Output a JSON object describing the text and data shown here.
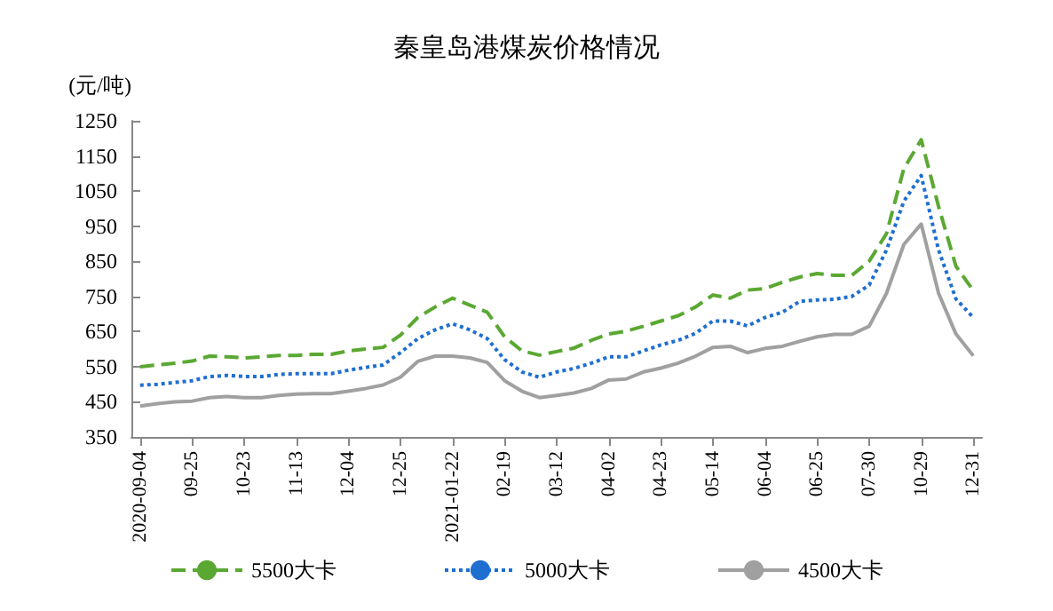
{
  "chart_data": {
    "type": "line",
    "title": "秦皇岛港煤炭价格情况",
    "ylabel": "(元/吨)",
    "categories": [
      "2020-09-04",
      null,
      null,
      "09-25",
      null,
      null,
      "10-23",
      null,
      null,
      "11-13",
      null,
      null,
      "12-04",
      null,
      null,
      "12-25",
      null,
      null,
      "2021-01-22",
      null,
      null,
      "02-19",
      null,
      null,
      "03-12",
      null,
      null,
      "04-02",
      null,
      null,
      "04-23",
      null,
      null,
      "05-14",
      null,
      null,
      "06-04",
      null,
      null,
      "06-25",
      null,
      null,
      "07-30",
      null,
      null,
      "10-29",
      null,
      null,
      "12-31"
    ],
    "series": [
      {
        "name": "5500大卡",
        "color": "#5aa832",
        "line_style": "dashed",
        "values": [
          550,
          555,
          560,
          566,
          580,
          578,
          575,
          578,
          582,
          582,
          585,
          585,
          595,
          600,
          605,
          640,
          690,
          720,
          745,
          725,
          705,
          635,
          595,
          583,
          593,
          603,
          625,
          643,
          651,
          665,
          680,
          695,
          720,
          754,
          745,
          768,
          772,
          790,
          805,
          815,
          810,
          810,
          850,
          929,
          1114,
          1196,
          1006,
          836,
          767
        ]
      },
      {
        "name": "5000大卡",
        "color": "#1f6fd0",
        "line_style": "dotted",
        "values": [
          497,
          500,
          505,
          510,
          522,
          525,
          522,
          522,
          528,
          530,
          530,
          530,
          540,
          548,
          555,
          590,
          630,
          655,
          672,
          655,
          630,
          570,
          535,
          520,
          535,
          545,
          560,
          578,
          578,
          595,
          612,
          625,
          645,
          680,
          680,
          666,
          690,
          705,
          736,
          740,
          742,
          750,
          782,
          882,
          1021,
          1094,
          882,
          743,
          690
        ]
      },
      {
        "name": "4500大卡",
        "color": "#a0a0a0",
        "line_style": "solid",
        "values": [
          438,
          445,
          450,
          452,
          462,
          465,
          462,
          462,
          468,
          472,
          473,
          473,
          480,
          488,
          498,
          520,
          565,
          580,
          580,
          575,
          562,
          510,
          480,
          462,
          468,
          475,
          488,
          512,
          515,
          535,
          546,
          560,
          580,
          605,
          608,
          590,
          602,
          608,
          622,
          635,
          642,
          642,
          665,
          759,
          898,
          956,
          759,
          643,
          581
        ]
      }
    ],
    "ylim": [
      350,
      1250
    ],
    "yticks": [
      350,
      450,
      550,
      650,
      750,
      850,
      950,
      1050,
      1150,
      1250
    ],
    "grid": false,
    "legend": "bottom",
    "marker": "none"
  }
}
